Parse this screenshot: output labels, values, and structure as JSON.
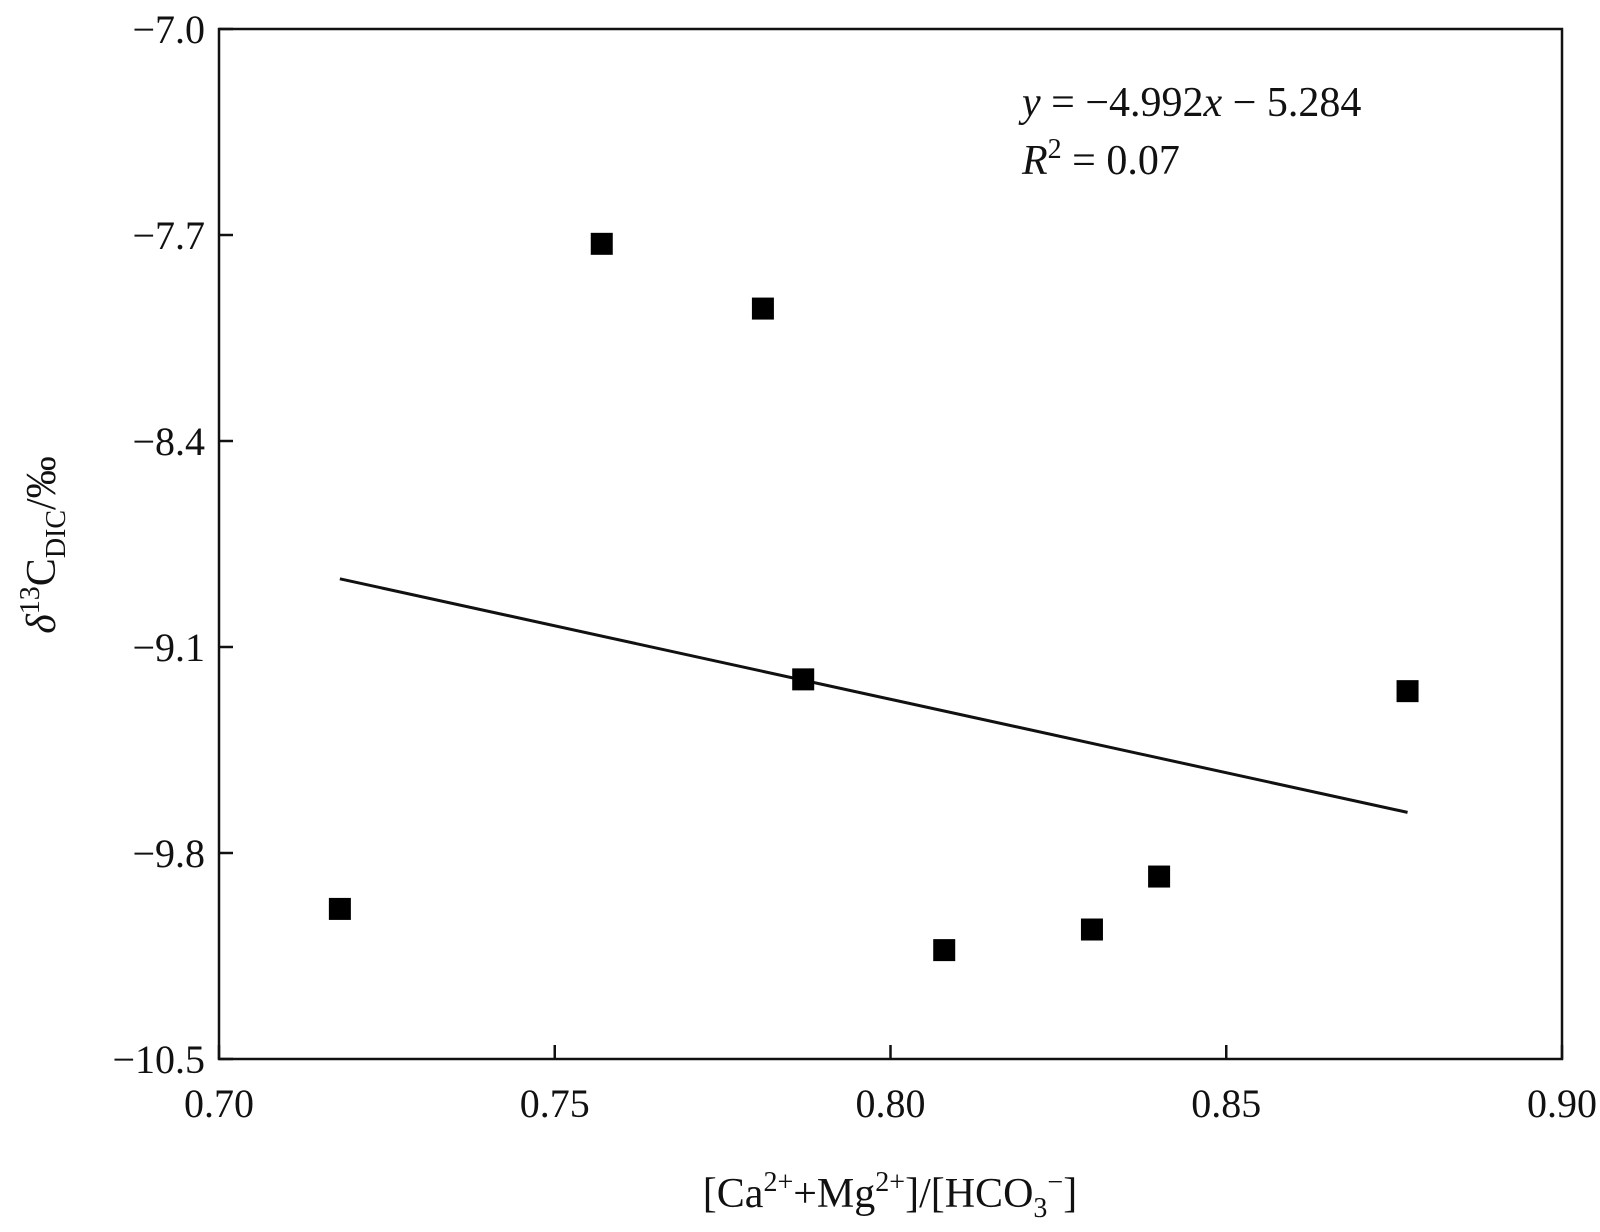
{
  "chart_data": {
    "type": "scatter",
    "xlabel": "[Ca²⁺+Mg²⁺]/[HCO₃⁻]",
    "ylabel": "δ¹³C_DIC/‰",
    "xlim": [
      0.7,
      0.9
    ],
    "ylim": [
      -10.5,
      -7.0
    ],
    "x_ticks": [
      "0.70",
      "0.75",
      "0.80",
      "0.85",
      "0.90"
    ],
    "y_ticks": [
      "−7.0",
      "−7.7",
      "−8.4",
      "−9.1",
      "−9.8",
      "−10.5"
    ],
    "points": [
      {
        "x": 0.718,
        "y": -9.99
      },
      {
        "x": 0.757,
        "y": -7.73
      },
      {
        "x": 0.781,
        "y": -7.95
      },
      {
        "x": 0.787,
        "y": -9.21
      },
      {
        "x": 0.808,
        "y": -10.13
      },
      {
        "x": 0.83,
        "y": -10.06
      },
      {
        "x": 0.84,
        "y": -9.88
      },
      {
        "x": 0.877,
        "y": -9.25
      }
    ],
    "fit_line": {
      "slope": -4.992,
      "intercept": -5.284,
      "x_range": [
        0.718,
        0.877
      ]
    },
    "equation_text": {
      "y": "y",
      "eq_rest": " = −4.992",
      "x": "x",
      "eq_tail": " − 5.284",
      "r": "R",
      "r_exp": "2",
      "r_val": " = 0.07"
    },
    "axis_label_parts": {
      "x_part1": "[Ca",
      "x_sup1": "2+",
      "x_part2": "+Mg",
      "x_sup2": "2+",
      "x_part3": "]/[HCO",
      "x_sub": "3",
      "x_sup3": "−",
      "x_part4": "]",
      "y_delta": "δ",
      "y_sup": "13",
      "y_c": "C",
      "y_sub": "DIC",
      "y_unit": "/‰"
    },
    "grid": false,
    "legend": "none",
    "marker": "square",
    "color": "#000000"
  }
}
